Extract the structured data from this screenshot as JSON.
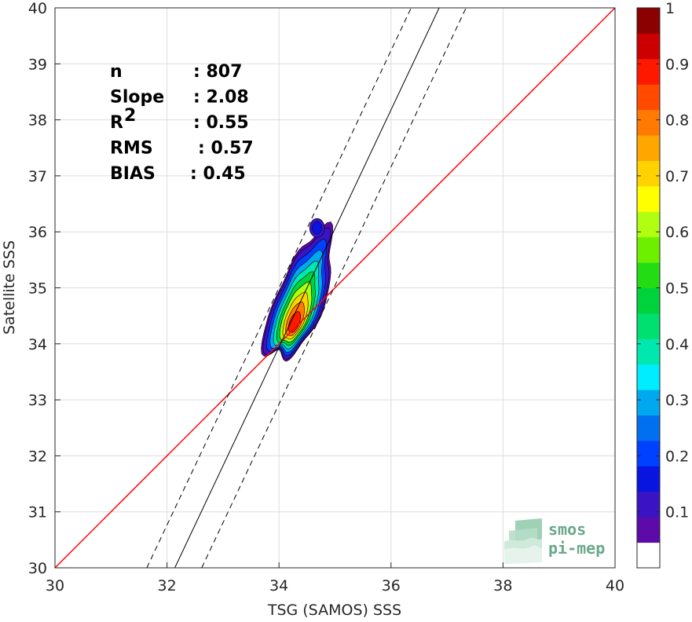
{
  "chart_data": {
    "type": "heatmap",
    "subtype": "density-contour scatter comparison",
    "xlabel": "TSG (SAMOS) SSS",
    "ylabel": "Satellite SSS",
    "xlim": [
      30,
      40
    ],
    "ylim": [
      30,
      40
    ],
    "xticks": [
      "30",
      "32",
      "34",
      "36",
      "38",
      "40"
    ],
    "yticks": [
      "30",
      "31",
      "32",
      "33",
      "34",
      "35",
      "36",
      "37",
      "38",
      "39",
      "40"
    ],
    "grid": true,
    "stats": [
      {
        "key": "n",
        "value": ": 807"
      },
      {
        "key": "Slope",
        "value": ": 2.08"
      },
      {
        "key": "R",
        "sup": "2",
        "value": ": 0.55"
      },
      {
        "key": "RMS",
        "value": ": 0.57"
      },
      {
        "key": "BIAS",
        "value": ": 0.45"
      }
    ],
    "reference_lines": [
      {
        "name": "1:1",
        "color": "#ff0000",
        "style": "solid",
        "slope": 1,
        "intercept": 0
      },
      {
        "name": "regression",
        "color": "#000000",
        "style": "solid",
        "slope": 2.08,
        "points": [
          [
            32.14,
            30
          ],
          [
            36.86,
            40
          ]
        ]
      },
      {
        "name": "regression-upper",
        "color": "#000000",
        "style": "dashed",
        "points": [
          [
            31.64,
            30
          ],
          [
            36.36,
            40
          ]
        ]
      },
      {
        "name": "regression-lower",
        "color": "#000000",
        "style": "dashed",
        "points": [
          [
            32.62,
            30
          ],
          [
            37.34,
            40
          ]
        ]
      }
    ],
    "density_contours": {
      "center": [
        34.3,
        34.6
      ],
      "secondary_peak": [
        34.68,
        36.07
      ],
      "levels": [
        0.05,
        0.1,
        0.2,
        0.3,
        0.4,
        0.5,
        0.6,
        0.7,
        0.8,
        0.9
      ],
      "max_level": 0.9
    },
    "colorbar": {
      "range": [
        0,
        1
      ],
      "ticks": [
        "0.1",
        "0.2",
        "0.3",
        "0.4",
        "0.5",
        "0.6",
        "0.7",
        "0.8",
        "0.9",
        "1"
      ],
      "colors": [
        "#ffffff",
        "#5c0aa8",
        "#3a14c4",
        "#0a14e0",
        "#0040ff",
        "#0070f0",
        "#00a8f0",
        "#00ecff",
        "#00e8b0",
        "#00e070",
        "#00d23c",
        "#22dc14",
        "#6cf000",
        "#b0ff10",
        "#ffff00",
        "#ffd200",
        "#ffa600",
        "#ff7a00",
        "#ff4a00",
        "#ff1800",
        "#cc0000",
        "#8b0000"
      ]
    }
  },
  "logo": {
    "line1": "smos",
    "line2": "pi-mep"
  }
}
